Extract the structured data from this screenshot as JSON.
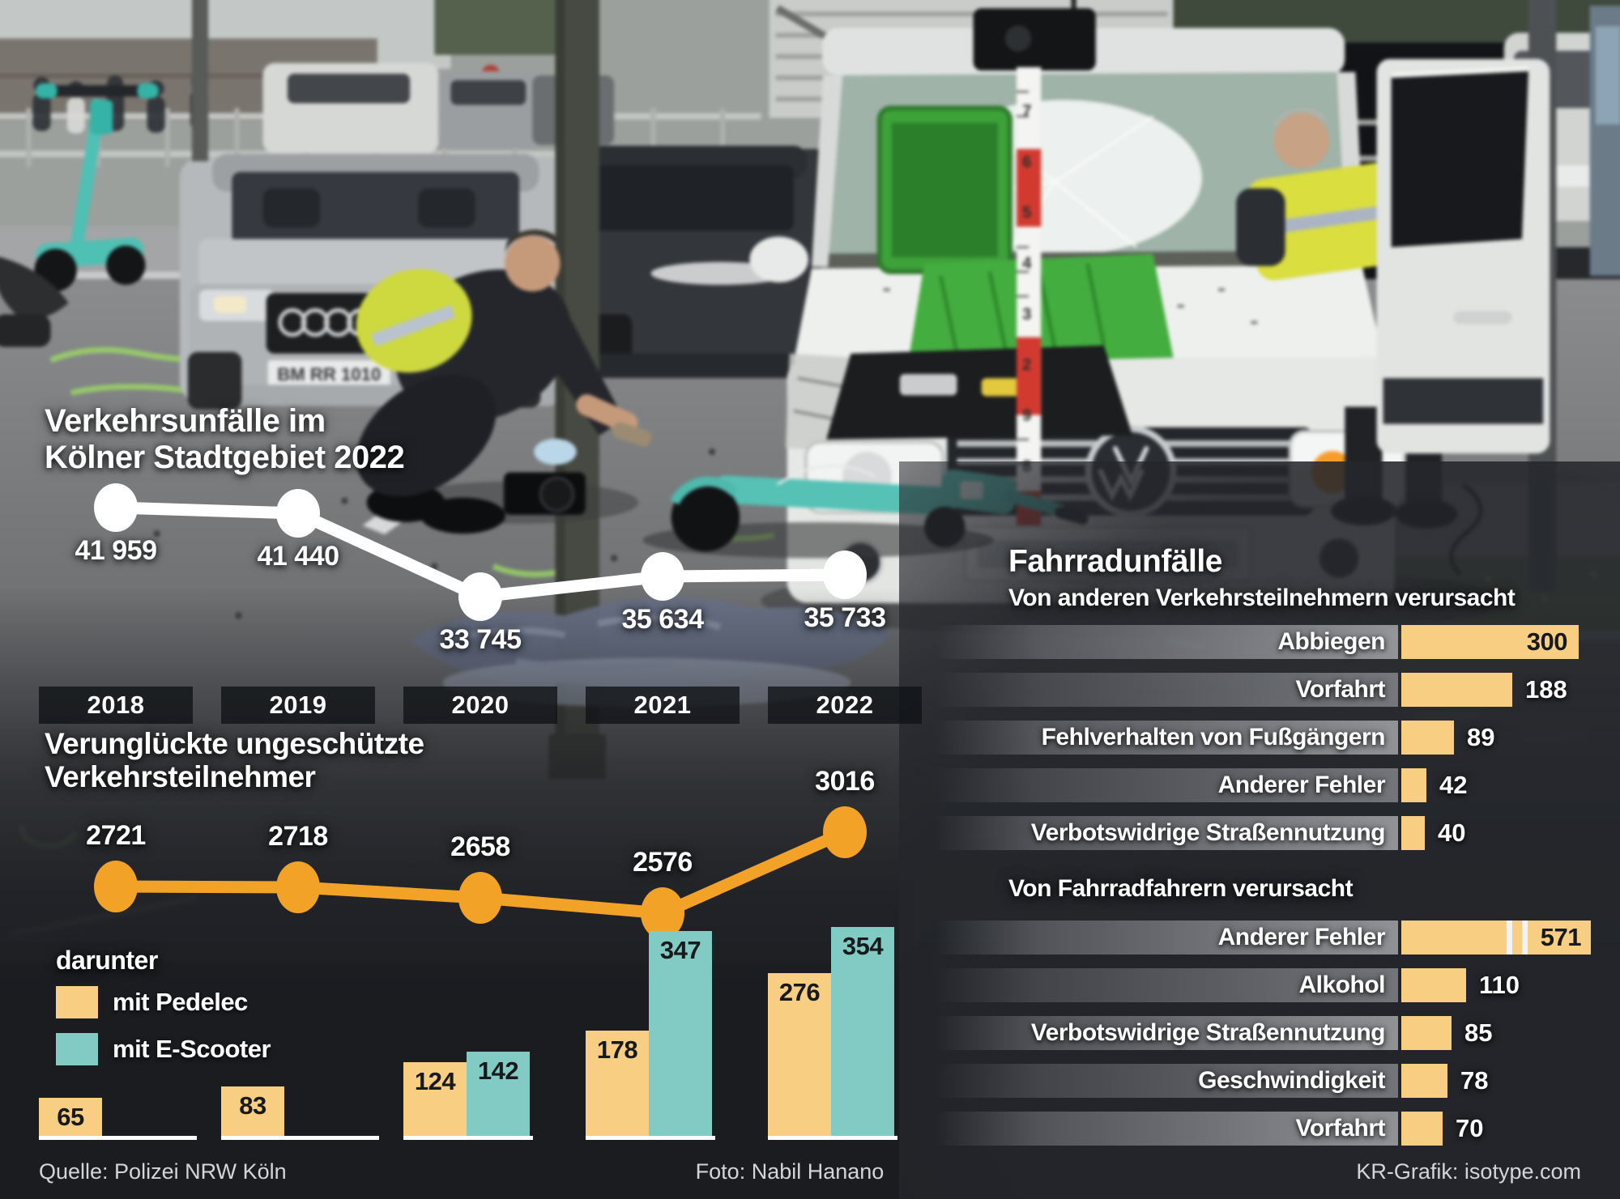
{
  "colors": {
    "yellow": "#F7CE82",
    "teal": "#82CBC4",
    "orange": "#F2A227",
    "white": "#FFFFFF",
    "dark_text": "#17191D"
  },
  "years_axis": [
    "2018",
    "2019",
    "2020",
    "2021",
    "2022"
  ],
  "photo": {
    "license_plate": "BM RR 1010",
    "measuring_tape_digits": [
      "7",
      "6",
      "5",
      "4",
      "3",
      "2",
      "9",
      "8"
    ]
  },
  "footer": {
    "source": "Quelle: Polizei NRW Köln",
    "photo_credit": "Foto: Nabil Hanano",
    "graphic_credit": "KR-Grafik: isotype.com"
  },
  "chart_data": [
    {
      "id": "accidents-line",
      "type": "line",
      "title": "Verkehrsunfälle im Kölner Stadtgebiet 2022",
      "title_lines": [
        "Verkehrsunfälle im",
        "Kölner Stadtgebiet 2022"
      ],
      "categories": [
        "2018",
        "2019",
        "2020",
        "2021",
        "2022"
      ],
      "values": [
        41959,
        41440,
        33745,
        35634,
        35733
      ],
      "labels": [
        "41 959",
        "41 440",
        "33 745",
        "35 634",
        "35 733"
      ],
      "color": "#FFFFFF",
      "grid": false,
      "legend_position": "none"
    },
    {
      "id": "casualties-line",
      "type": "line",
      "title": "Verunglückte ungeschützte Verkehrsteilnehmer",
      "title_lines": [
        "Verunglückte ungeschützte",
        "Verkehrsteilnehmer"
      ],
      "categories": [
        "2018",
        "2019",
        "2020",
        "2021",
        "2022"
      ],
      "values": [
        2721,
        2718,
        2658,
        2576,
        3016
      ],
      "labels": [
        "2721",
        "2718",
        "2658",
        "2576",
        "3016"
      ],
      "color": "#F2A227",
      "grid": false,
      "legend_position": "none"
    },
    {
      "id": "mode-bars",
      "type": "bar",
      "title": "darunter",
      "categories": [
        "2018",
        "2019",
        "2020",
        "2021",
        "2022"
      ],
      "series": [
        {
          "name": "mit Pedelec",
          "color": "#F7CE82",
          "values": [
            65,
            83,
            124,
            178,
            276
          ]
        },
        {
          "name": "mit E-Scooter",
          "color": "#82CBC4",
          "values": [
            null,
            null,
            142,
            347,
            354
          ]
        }
      ],
      "legend_position": "top-left"
    },
    {
      "id": "bike-accidents-by-others",
      "type": "bar",
      "orientation": "horizontal",
      "title": "Fahrradunfälle",
      "subtitle": "Von anderen Verkehrsteilnehmern verursacht",
      "categories": [
        "Abbiegen",
        "Vorfahrt",
        "Fehlverhalten von Fußgängern",
        "Anderer Fehler",
        "Verbotswidrige Straßennutzung"
      ],
      "values": [
        300,
        188,
        89,
        42,
        40
      ],
      "bar_color": "#F7CE82"
    },
    {
      "id": "bike-accidents-by-cyclists",
      "type": "bar",
      "orientation": "horizontal",
      "subtitle": "Von Fahrradfahrern verursacht",
      "categories": [
        "Anderer Fehler",
        "Alkohol",
        "Verbotswidrige Straßennutzung",
        "Geschwindigkeit",
        "Vorfahrt"
      ],
      "values": [
        571,
        110,
        85,
        78,
        70
      ],
      "break_index": 0,
      "break_note": "bar for 571 drawn with axis break",
      "bar_color": "#F7CE82"
    }
  ]
}
